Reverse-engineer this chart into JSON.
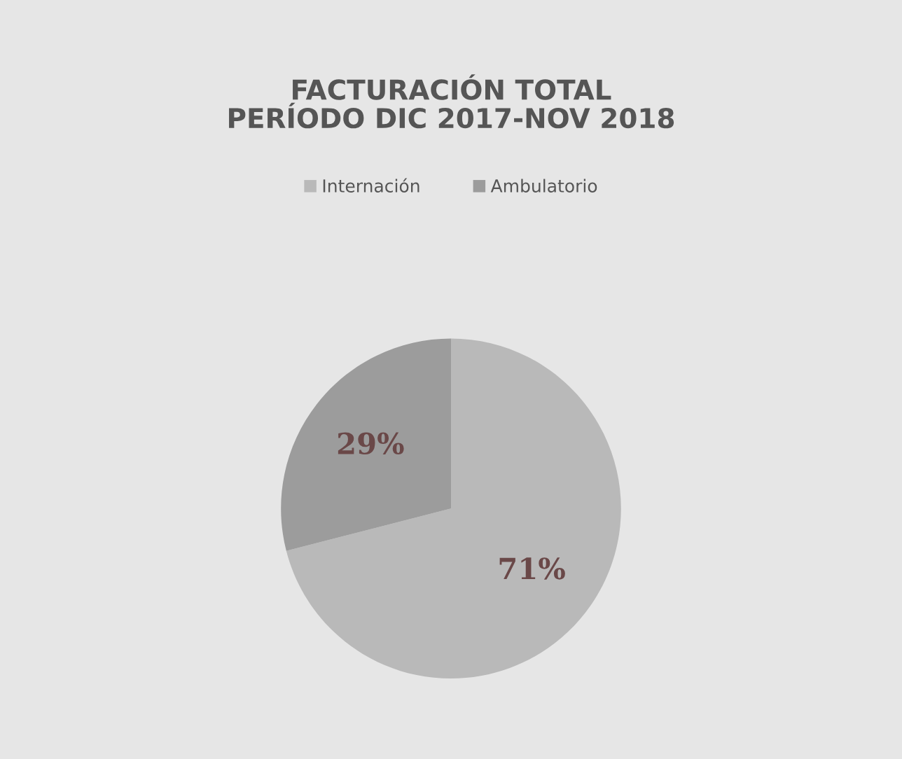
{
  "chart_data": {
    "type": "pie",
    "title": "FACTURACIÓN TOTAL\nPERÍODO DIC 2017-NOV 2018",
    "categories": [
      "Internación",
      "Ambulatorio"
    ],
    "values": [
      71,
      29
    ],
    "colors": [
      "#b9b9b9",
      "#9c9c9c"
    ],
    "value_labels": [
      "71%",
      "29%"
    ],
    "legend": "top"
  }
}
